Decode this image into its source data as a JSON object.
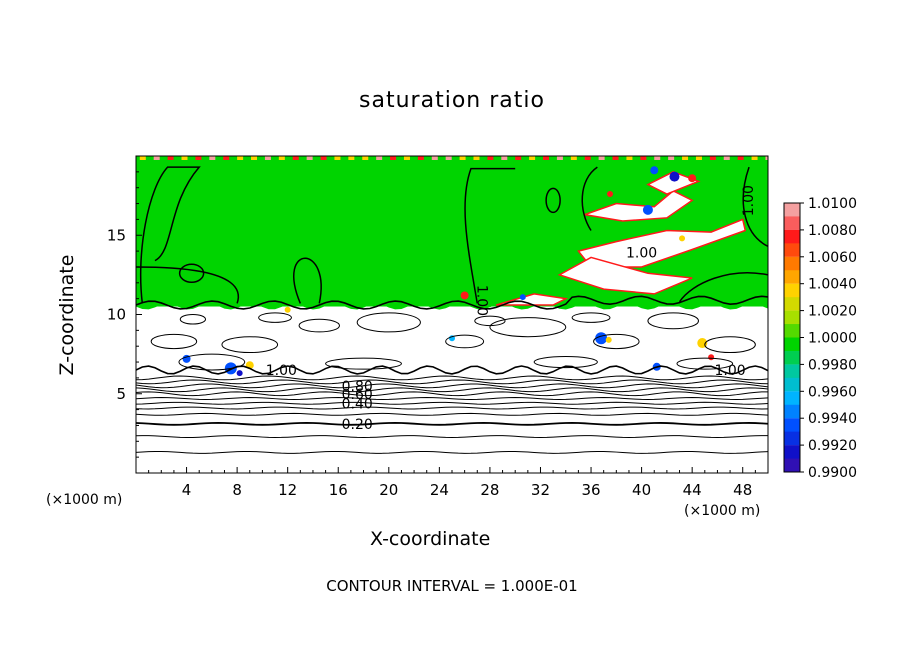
{
  "chart_data": {
    "type": "heatmap",
    "title": "saturation ratio",
    "xlabel": "X-coordinate",
    "ylabel": "Z-coordinate",
    "x_unit_label": "(×1000 m)",
    "x_unit_label_right": "(×1000 m)",
    "footnote": "CONTOUR INTERVAL = 1.000E-01",
    "xlim": [
      0,
      50
    ],
    "ylim": [
      0,
      20
    ],
    "x_ticks": [
      4,
      8,
      12,
      16,
      20,
      24,
      28,
      32,
      36,
      40,
      44,
      48
    ],
    "y_ticks": [
      5,
      10,
      15
    ],
    "colorbar": {
      "ticks": [
        "1.0100",
        "1.0080",
        "1.0060",
        "1.0040",
        "1.0020",
        "1.0000",
        "0.9980",
        "0.9960",
        "0.9940",
        "0.9920",
        "0.9900"
      ],
      "range": [
        0.99,
        1.01
      ],
      "colors": [
        "#f4a0a0",
        "#ff1a1a",
        "#ff7a00",
        "#ffd200",
        "#a8e000",
        "#00d400",
        "#00c8a0",
        "#00b4ff",
        "#0050ff",
        "#1010c8",
        "#5010a0"
      ]
    },
    "contour_interval": 0.1,
    "contour_labels": [
      {
        "text": "0.20",
        "x": 17.5,
        "y": 3.1
      },
      {
        "text": "0.40",
        "x": 17.5,
        "y": 4.4
      },
      {
        "text": "0.60",
        "x": 17.5,
        "y": 5.0
      },
      {
        "text": "0.80",
        "x": 17.5,
        "y": 5.5
      },
      {
        "text": "1.00",
        "x": 11.5,
        "y": 6.5
      },
      {
        "text": "1.00",
        "x": 47.0,
        "y": 6.5
      },
      {
        "text": "1.00",
        "x": 27.0,
        "y": 11.2
      },
      {
        "text": "1.00",
        "x": 40.0,
        "y": 13.9
      },
      {
        "text": "1.00",
        "x": 48.8,
        "y": 17.5
      }
    ],
    "cloud_base_z": 10.5,
    "field_description_values": {
      "upper_region_saturation": 1.0,
      "lower_region_below_contours": "subsaturated (white)"
    }
  }
}
